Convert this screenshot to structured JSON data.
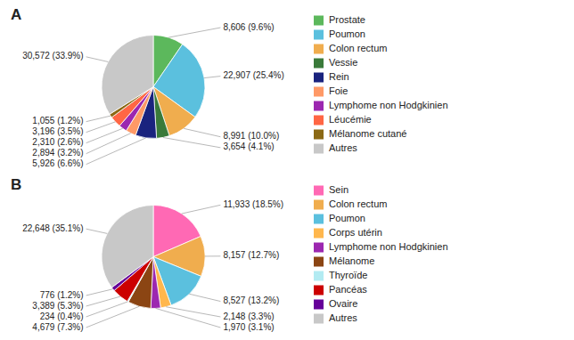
{
  "chart_data": [
    {
      "type": "pie",
      "title": "A",
      "categories": [
        "Prostate",
        "Poumon",
        "Colon rectum",
        "Vessie",
        "Rein",
        "Foie",
        "Lymphome non Hodgkinien",
        "Léucémie",
        "Mélanome cutané",
        "Autres"
      ],
      "values": [
        8606,
        22907,
        8991,
        3654,
        5926,
        2894,
        2310,
        3196,
        1055,
        30572
      ],
      "value_labels": [
        "8,606 (9.6%)",
        "22,907 (25.4%)",
        "8,991 (10.0%)",
        "3,654 (4.1%)",
        "5,926 (6.6%)",
        "2,894 (3.2%)",
        "2,310 (2.6%)",
        "3,196 (3.5%)",
        "1,055 (1.2%)",
        "30,572 (33.9%)"
      ],
      "colors": [
        "#5CB85C",
        "#5BC0DE",
        "#F0AD4E",
        "#3A7A3A",
        "#1A237E",
        "#FF9966",
        "#9C27B0",
        "#FF6644",
        "#8B6914",
        "#C8C8C8"
      ],
      "data_labels": true,
      "legend": "right"
    },
    {
      "type": "pie",
      "title": "B",
      "categories": [
        "Sein",
        "Colon rectum",
        "Poumon",
        "Corps utérin",
        "Lymphome non Hodgkinien",
        "Mélanome",
        "Thyroïde",
        "Pancéas",
        "Ovaire",
        "Autres"
      ],
      "values": [
        11933,
        8157,
        8527,
        2148,
        1970,
        4679,
        234,
        3389,
        776,
        22648
      ],
      "value_labels": [
        "11,933 (18.5%)",
        "8,157 (12.7%)",
        "8,527 (13.2%)",
        "2,148 (3.3%)",
        "1,970 (3.1%)",
        "4,679 (7.3%)",
        "234 (0.4%)",
        "3,389 (5.3%)",
        "776 (1.2%)",
        "22,648 (35.1%)"
      ],
      "colors": [
        "#FF69B4",
        "#F0AD4E",
        "#5BC0DE",
        "#FFB74D",
        "#9C27B0",
        "#8B4513",
        "#B2EBF2",
        "#CC0000",
        "#660099",
        "#C8C8C8"
      ],
      "data_labels": true,
      "legend": "right"
    }
  ]
}
